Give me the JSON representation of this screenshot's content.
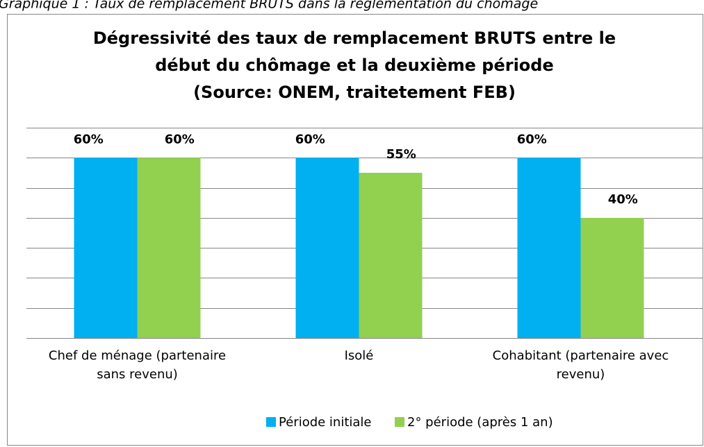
{
  "caption": "Graphique 1 : Taux de remplacement BRUTS dans la réglementation du chômage",
  "chart_data": {
    "type": "bar",
    "title": [
      "Dégressivité des taux de remplacement BRUTS entre le",
      "début du chômage et la deuxième période",
      "(Source: ONEM, traitetement FEB)"
    ],
    "categories": [
      "Chef de ménage (partenaire sans revenu)",
      "Isolé",
      "Cohabitant (partenaire avec revenu)"
    ],
    "series": [
      {
        "name": "Période initiale",
        "color": "#00b0f0",
        "values": [
          60,
          60,
          60
        ],
        "value_labels": [
          "60%",
          "60%",
          "60%"
        ]
      },
      {
        "name": "2° période (après 1 an)",
        "color": "#92d050",
        "values": [
          60,
          55,
          40
        ],
        "value_labels": [
          "60%",
          "55%",
          "40%"
        ]
      }
    ],
    "ylim": [
      0,
      70
    ],
    "yticks": [
      0,
      10,
      20,
      30,
      40,
      50,
      60,
      70
    ],
    "grid": true,
    "legend": "bottom"
  }
}
